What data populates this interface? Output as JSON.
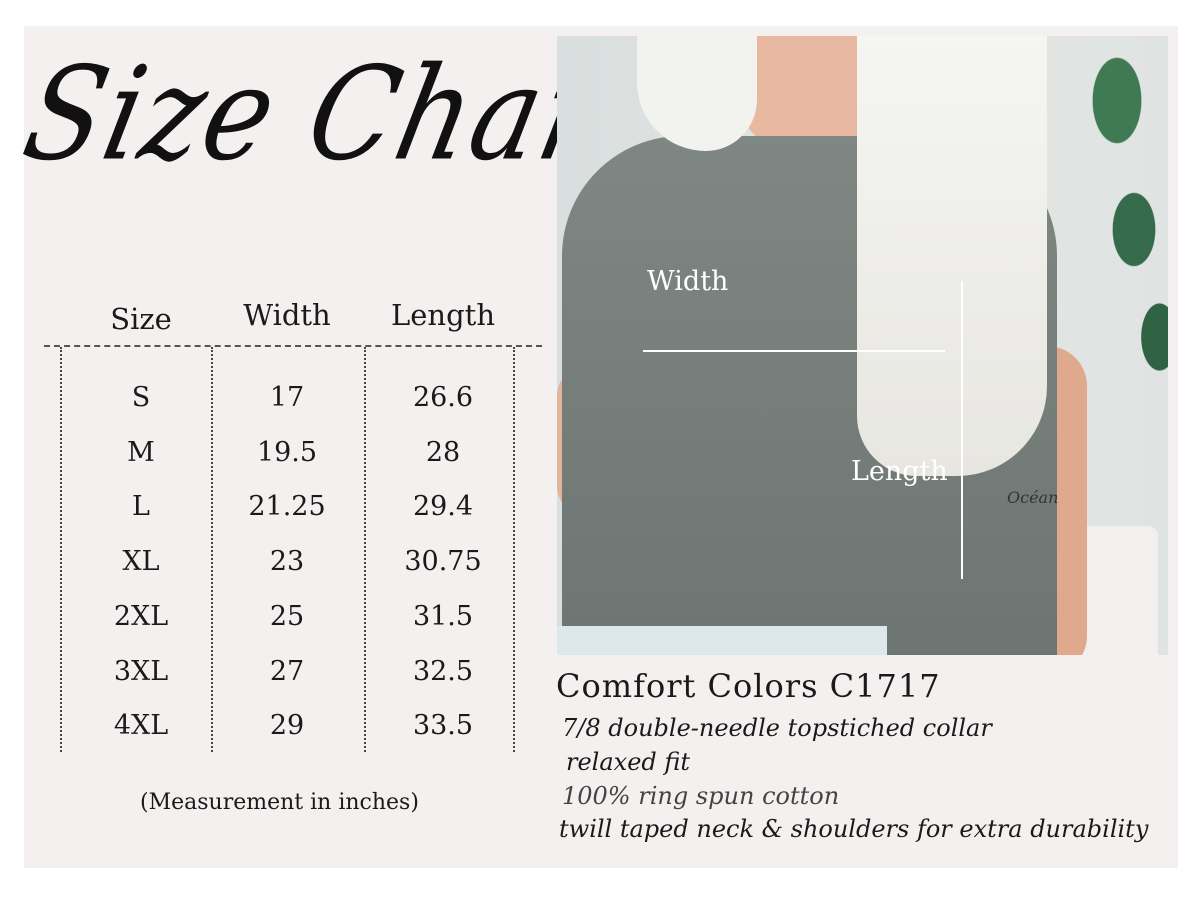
{
  "title": "Size Chart",
  "table": {
    "headers": [
      "Size",
      "Width",
      "Length"
    ],
    "rows": [
      [
        "S",
        "17",
        "26.6"
      ],
      [
        "M",
        "19.5",
        "28"
      ],
      [
        "L",
        "21.25",
        "29.4"
      ],
      [
        "XL",
        "23",
        "30.75"
      ],
      [
        "2XL",
        "25",
        "31.5"
      ],
      [
        "3XL",
        "27",
        "32.5"
      ],
      [
        "4XL",
        "29",
        "33.5"
      ]
    ]
  },
  "note": "(Measurement in inches)",
  "photo": {
    "width_label": "Width",
    "length_label": "Length",
    "tattoo": "Océan"
  },
  "product": {
    "name": "Comfort Colors C1717",
    "features": [
      "7/8 double-needle topstiched collar",
      "relaxed fit",
      "100% ring spun cotton",
      "twill taped neck & shoulders for extra durability"
    ]
  },
  "colors": {
    "background": "#f4f0ef",
    "shirt": "#7a827f",
    "text": "#1a1a1a"
  }
}
